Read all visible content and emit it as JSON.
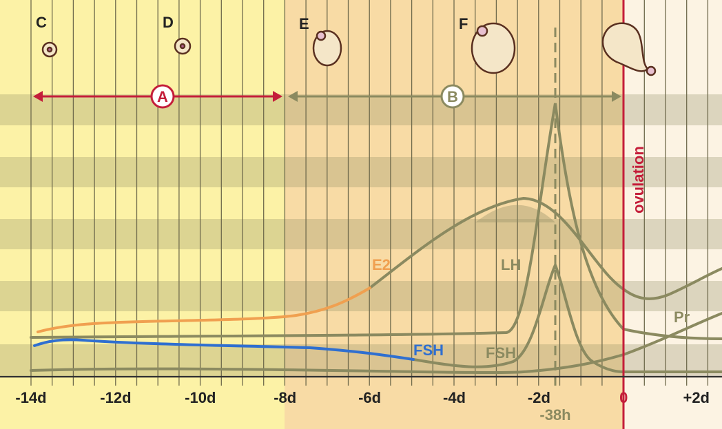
{
  "stages": [
    {
      "label": "C"
    },
    {
      "label": "D"
    },
    {
      "label": "E"
    },
    {
      "label": "F"
    }
  ],
  "phases": [
    {
      "label": "A"
    },
    {
      "label": "B"
    }
  ],
  "event": "ovulation",
  "curves": [
    {
      "label": "E2"
    },
    {
      "label": "LH"
    },
    {
      "label": "FSH"
    },
    {
      "label": "FSH"
    },
    {
      "label": "Pr"
    }
  ],
  "axis": {
    "ticks": [
      "-14d",
      "-12d",
      "-10d",
      "-8d",
      "-6d",
      "-4d",
      "-2d",
      "0",
      "+2d"
    ]
  },
  "marker": "-38h"
}
